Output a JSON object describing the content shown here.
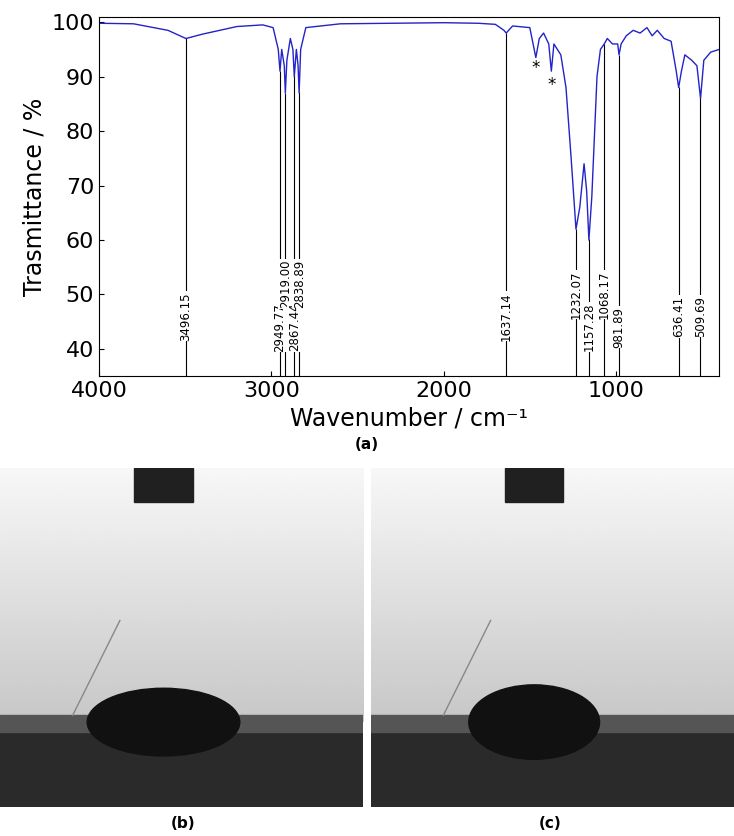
{
  "chart_data": {
    "type": "line",
    "x_label": "Wavenumber / cm⁻¹",
    "y_label": "Trasmittance / %",
    "color": "#2323c8",
    "x": [
      4000,
      3800,
      3600,
      3496,
      3400,
      3200,
      3050,
      2990,
      2960,
      2950,
      2940,
      2925,
      2919,
      2910,
      2890,
      2875,
      2867,
      2855,
      2845,
      2839,
      2830,
      2800,
      2600,
      2000,
      1800,
      1700,
      1650,
      1637,
      1600,
      1500,
      1465,
      1445,
      1420,
      1390,
      1375,
      1360,
      1320,
      1290,
      1260,
      1232,
      1210,
      1185,
      1170,
      1157,
      1140,
      1110,
      1090,
      1068,
      1050,
      1020,
      990,
      982,
      970,
      940,
      900,
      860,
      820,
      790,
      760,
      720,
      680,
      650,
      636,
      620,
      600,
      560,
      530,
      509,
      490,
      450,
      400
    ],
    "values": [
      99.8,
      99.7,
      98.5,
      97.0,
      97.8,
      99.2,
      99.5,
      99.0,
      95.0,
      91.0,
      95.0,
      92.0,
      87.0,
      93.0,
      97.0,
      95.0,
      90.0,
      95.0,
      92.0,
      87.0,
      95.0,
      99.0,
      99.7,
      99.9,
      99.8,
      99.6,
      98.5,
      98.0,
      99.3,
      99.0,
      93.5,
      97.0,
      98.0,
      96.0,
      91.0,
      96.0,
      94.0,
      88.0,
      75.0,
      62.0,
      66.0,
      74.0,
      69.0,
      60.0,
      68.0,
      90.0,
      95.0,
      96.0,
      97.0,
      96.0,
      96.0,
      94.0,
      96.0,
      97.5,
      98.5,
      98.0,
      99.0,
      97.5,
      98.5,
      97.0,
      96.5,
      91.0,
      88.0,
      91.0,
      94.0,
      93.0,
      92.0,
      86.0,
      93.0,
      94.5,
      95.0
    ],
    "xlim": [
      4000,
      400
    ],
    "ylim": [
      35,
      101
    ],
    "xticks": [
      4000,
      3000,
      2000,
      1000
    ],
    "yticks": [
      40,
      50,
      60,
      70,
      80,
      90,
      100
    ],
    "peak_labels": [
      {
        "value": 3496.15,
        "label": "3496.15"
      },
      {
        "value": 2949.77,
        "label": "2949.77"
      },
      {
        "value": 2919.0,
        "label": "2919.00"
      },
      {
        "value": 2867.44,
        "label": "2867.44"
      },
      {
        "value": 2838.89,
        "label": "2838.89"
      },
      {
        "value": 1637.14,
        "label": "1637.14"
      },
      {
        "value": 1232.07,
        "label": "1232.07"
      },
      {
        "value": 1157.28,
        "label": "1157.28"
      },
      {
        "value": 1068.17,
        "label": "1068.17"
      },
      {
        "value": 981.89,
        "label": "981.89"
      },
      {
        "value": 636.41,
        "label": "636.41"
      },
      {
        "value": 509.69,
        "label": "509.69"
      }
    ],
    "annotations": [
      {
        "x": 1465,
        "y": 91.5,
        "text": "*"
      },
      {
        "x": 1375,
        "y": 88.5,
        "text": "*"
      }
    ]
  },
  "panel_labels": [
    "(a)",
    "(b)",
    "(c)"
  ]
}
